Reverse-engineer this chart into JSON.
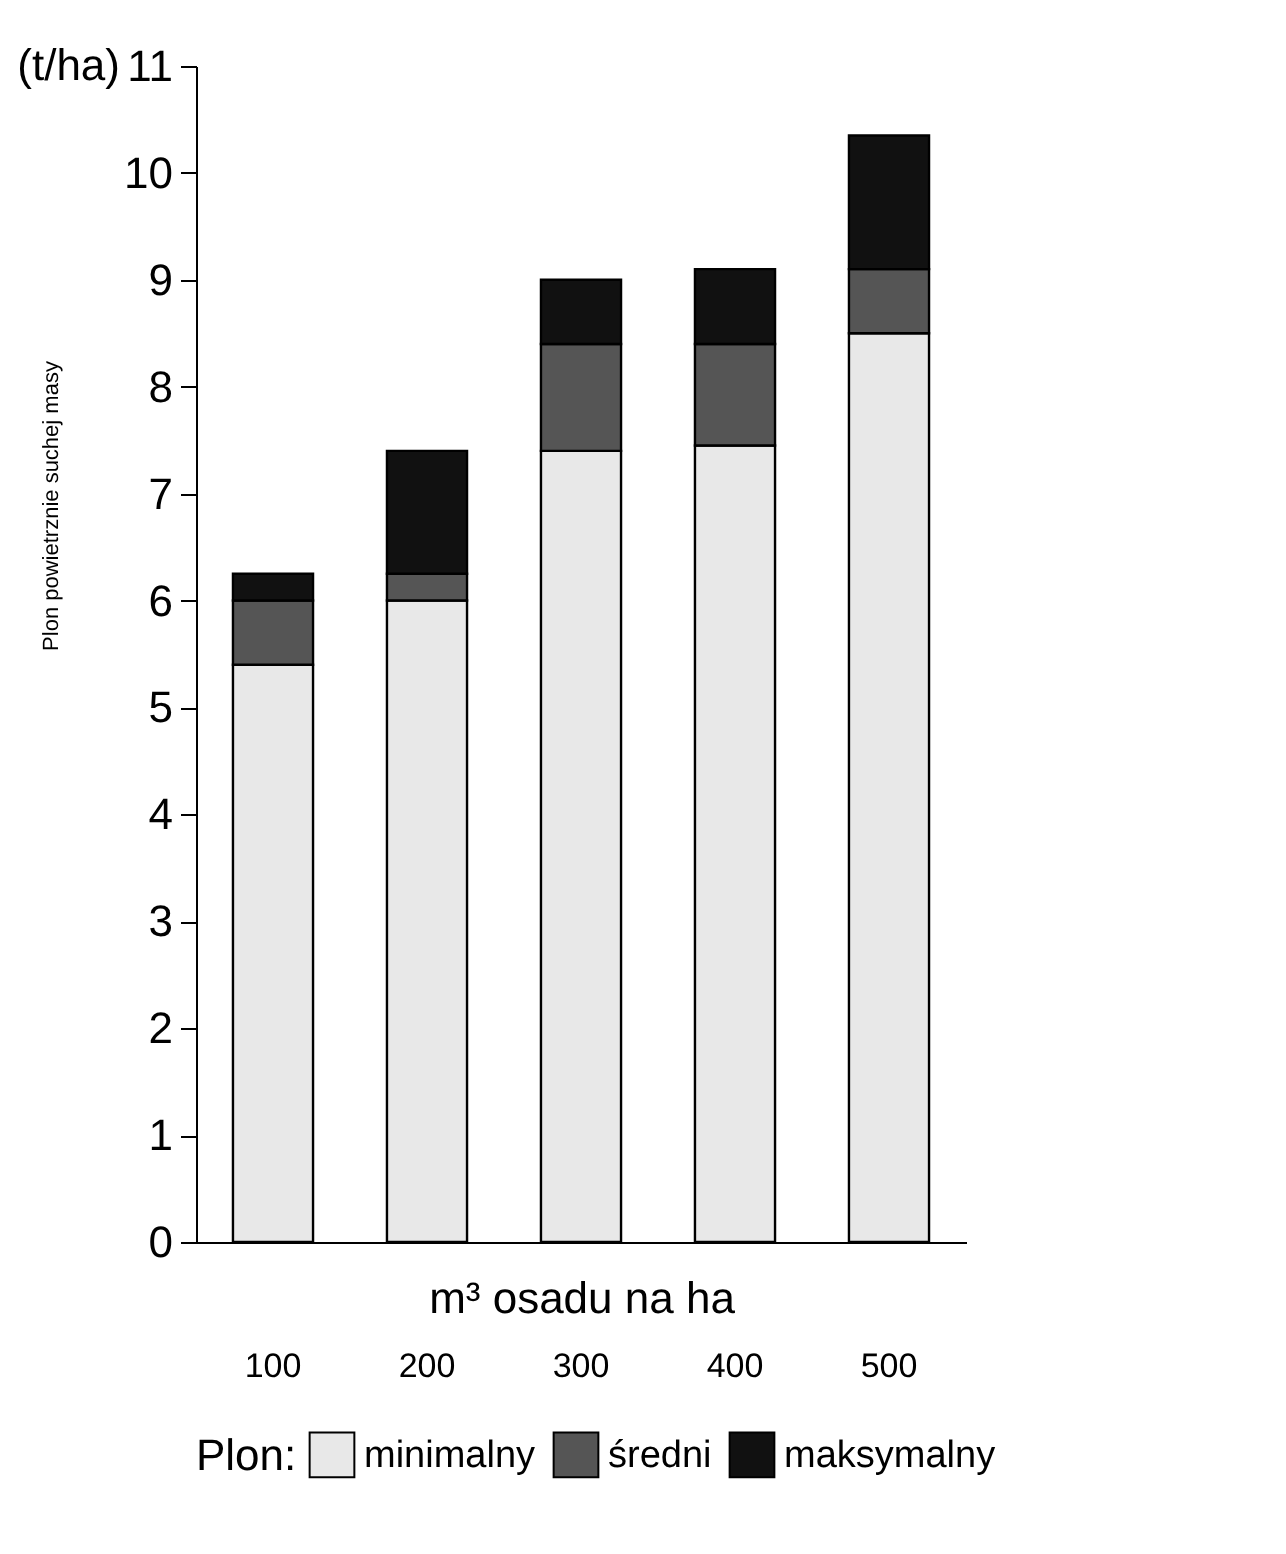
{
  "chart_data": {
    "type": "bar",
    "stacked": true,
    "xlabel": "m³ osadu na ha",
    "ylabel": "Plon powietrznie suchej masy",
    "legend_title": "Plon:",
    "annotations": [
      "(t/ha)"
    ],
    "categories": [
      "100",
      "200",
      "300",
      "400",
      "500"
    ],
    "series": [
      {
        "name": "minimalny",
        "color": "#e8e8e8",
        "values": [
          5.4,
          6.0,
          7.4,
          7.45,
          8.5
        ]
      },
      {
        "name": "średni",
        "color": "#555555",
        "values": [
          0.6,
          0.25,
          1.0,
          0.95,
          0.6
        ]
      },
      {
        "name": "maksymalny",
        "color": "#111111",
        "values": [
          0.25,
          1.15,
          0.6,
          0.7,
          1.25
        ]
      }
    ],
    "ylim": [
      0,
      11
    ],
    "yticks": [
      0,
      1,
      2,
      3,
      4,
      5,
      6,
      7,
      8,
      9,
      10,
      11
    ],
    "grid": false,
    "legend": "bottom"
  }
}
